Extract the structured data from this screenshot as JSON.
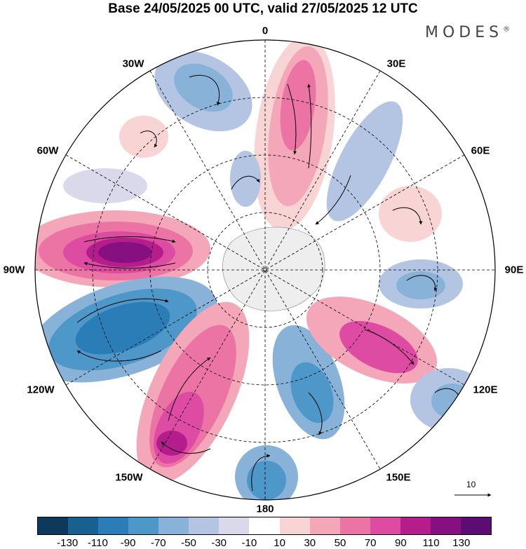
{
  "title": "Base 24/05/2025 00 UTC, valid 27/05/2025 12 UTC",
  "brand": "MODES",
  "brand_mark": "®",
  "longitude_labels": {
    "n0": "0",
    "n30e": "30E",
    "n60e": "60E",
    "n90e": "90E",
    "n120e": "120E",
    "n150e": "150E",
    "n180": "180",
    "n150w": "150W",
    "n120w": "120W",
    "n90w": "90W",
    "n60w": "60W",
    "n30w": "30W"
  },
  "reference_vector": "10",
  "colorbar": {
    "ticks": [
      "-130",
      "-110",
      "-90",
      "-70",
      "-50",
      "-30",
      "-10",
      "10",
      "30",
      "50",
      "70",
      "90",
      "110",
      "130"
    ],
    "colors": [
      "#0d3a5c",
      "#17608f",
      "#2b7db8",
      "#4e97c9",
      "#89b2d9",
      "#b3c5e2",
      "#dad9ec",
      "#ffffff",
      "#f8d4d4",
      "#f4a7b8",
      "#ec74a4",
      "#dd4ba3",
      "#b51d8d",
      "#86107f",
      "#5c0d73"
    ]
  }
}
